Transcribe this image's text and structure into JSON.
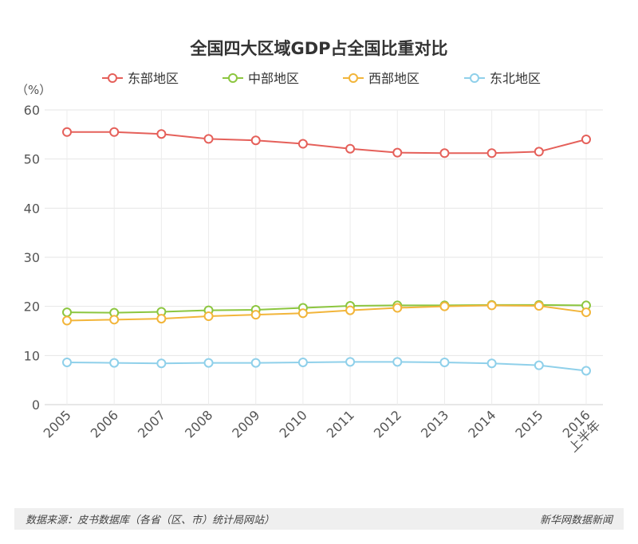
{
  "chart_data": {
    "type": "line",
    "title": "全国四大区域GDP占全国比重对比",
    "ylabel": "（%）",
    "xlabel": "",
    "ylim": [
      0,
      60
    ],
    "yticks": [
      0,
      10,
      20,
      30,
      40,
      50,
      60
    ],
    "categories": [
      "2005",
      "2006",
      "2007",
      "2008",
      "2009",
      "2010",
      "2011",
      "2012",
      "2013",
      "2014",
      "2015",
      "2016\n上半年"
    ],
    "series": [
      {
        "name": "东部地区",
        "color": "#e5605a",
        "values": [
          55.5,
          55.5,
          55.1,
          54.1,
          53.8,
          53.1,
          52.1,
          51.3,
          51.2,
          51.2,
          51.5,
          54.0
        ]
      },
      {
        "name": "中部地区",
        "color": "#8cc63f",
        "values": [
          18.8,
          18.7,
          18.9,
          19.2,
          19.3,
          19.7,
          20.1,
          20.2,
          20.2,
          20.3,
          20.3,
          20.2
        ]
      },
      {
        "name": "西部地区",
        "color": "#f2b53a",
        "values": [
          17.1,
          17.3,
          17.5,
          18.0,
          18.3,
          18.6,
          19.2,
          19.7,
          20.0,
          20.2,
          20.1,
          18.8
        ]
      },
      {
        "name": "东北地区",
        "color": "#8fd0ea",
        "values": [
          8.6,
          8.5,
          8.4,
          8.5,
          8.5,
          8.6,
          8.7,
          8.7,
          8.6,
          8.4,
          8.0,
          6.9
        ]
      }
    ],
    "grid": true,
    "legend": "top-center"
  },
  "footer": {
    "source": "数据来源：皮书数据库（各省（区、市）统计局网站）",
    "brand": "新华网数据新闻"
  }
}
